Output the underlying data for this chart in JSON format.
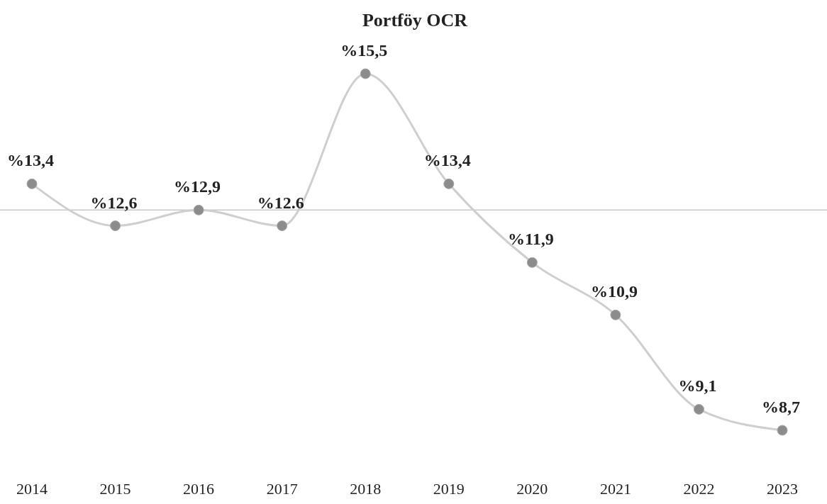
{
  "chart_data": {
    "type": "line",
    "title": "Portföy OCR",
    "categories": [
      "2014",
      "2015",
      "2016",
      "2017",
      "2018",
      "2019",
      "2020",
      "2021",
      "2022",
      "2023"
    ],
    "series": [
      {
        "color": "#8c8c8c",
        "values": [
          13.4,
          12.6,
          12.9,
          12.6,
          15.5,
          13.4,
          11.9,
          10.9,
          9.1,
          8.7
        ],
        "value_labels": [
          "%13,4",
          "%12,6",
          "%12,9",
          "%12.6",
          "%15,5",
          "%13,4",
          "%11,9",
          "%10,9",
          "%9,1",
          "%8,7"
        ]
      }
    ],
    "marker": "circle",
    "line_style": "solid",
    "ref_lines": [
      {
        "axis": "y",
        "value": 12.9,
        "color": "#c8c8c8"
      }
    ]
  }
}
